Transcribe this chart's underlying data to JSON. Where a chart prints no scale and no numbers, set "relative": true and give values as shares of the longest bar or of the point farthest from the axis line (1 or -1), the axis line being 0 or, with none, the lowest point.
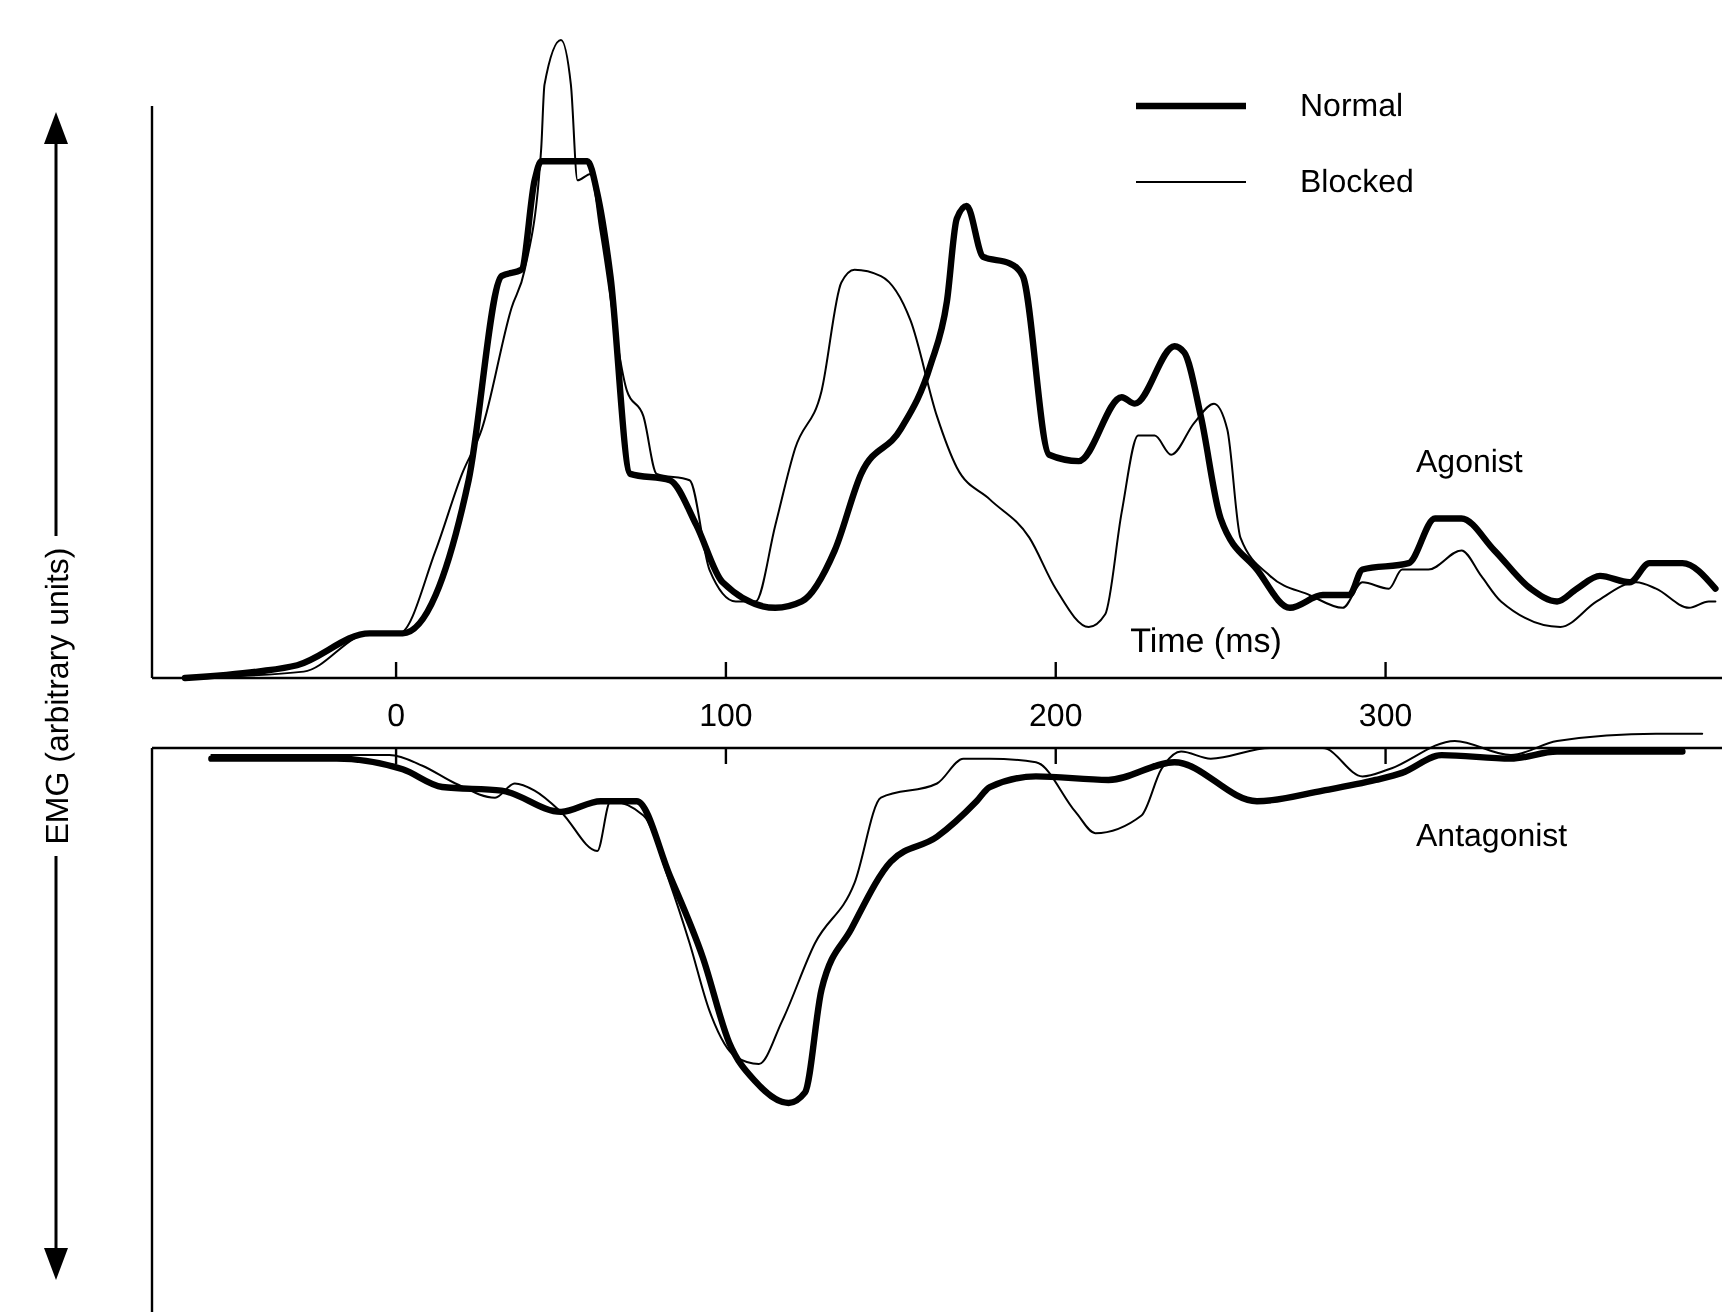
{
  "chart_data": [
    {
      "type": "line",
      "relative": true,
      "xlabel": "Time (ms)",
      "ylabel": "EMG (arbitrary units)",
      "xlim": [
        -74,
        402
      ],
      "xticks": [
        0,
        100,
        200,
        300
      ],
      "tick_labels": "x",
      "legend": "top right",
      "annotations": [
        "Agonist"
      ],
      "series": [
        {
          "name": "Normal",
          "color": "#000000",
          "x": [
            -64,
            -42,
            -30,
            -8,
            2,
            22,
            32,
            38,
            42,
            44,
            58,
            61,
            65,
            71,
            83,
            91,
            99,
            115,
            123,
            133,
            141,
            153,
            162,
            167,
            170,
            173,
            178,
            186,
            190,
            198,
            207,
            220,
            224,
            236,
            239,
            244,
            250,
            261,
            271,
            281,
            289,
            293,
            307,
            315,
            323,
            333,
            344,
            352,
            358,
            365,
            374,
            380,
            390,
            400
          ],
          "values": [
            0,
            0.01,
            0.02,
            0.07,
            0.07,
            0.31,
            0.63,
            0.64,
            0.78,
            0.81,
            0.81,
            0.76,
            0.63,
            0.32,
            0.31,
            0.24,
            0.15,
            0.11,
            0.12,
            0.2,
            0.32,
            0.39,
            0.49,
            0.59,
            0.72,
            0.74,
            0.66,
            0.65,
            0.63,
            0.35,
            0.34,
            0.44,
            0.43,
            0.52,
            0.51,
            0.41,
            0.25,
            0.17,
            0.11,
            0.13,
            0.13,
            0.17,
            0.18,
            0.25,
            0.25,
            0.2,
            0.14,
            0.12,
            0.14,
            0.16,
            0.15,
            0.18,
            0.18,
            0.14
          ]
        },
        {
          "name": "Blocked",
          "color": "#000000",
          "x": [
            -64,
            -28,
            -8,
            1,
            12,
            20,
            26,
            35,
            39,
            44,
            45,
            50,
            53,
            55,
            59,
            62,
            70,
            75,
            79,
            89,
            95,
            103,
            109,
            115,
            121,
            129,
            135,
            139,
            147,
            156,
            164,
            170,
            180,
            192,
            200,
            210,
            215,
            220,
            225,
            230,
            235,
            242,
            248,
            252,
            256,
            265,
            277,
            287,
            293,
            301,
            305,
            313,
            323,
            329,
            335,
            353,
            364,
            376,
            382,
            392,
            398,
            400
          ],
          "values": [
            0,
            0.01,
            0.07,
            0.07,
            0.2,
            0.32,
            0.39,
            0.58,
            0.64,
            0.83,
            0.93,
            1,
            0.93,
            0.78,
            0.79,
            0.7,
            0.45,
            0.41,
            0.32,
            0.31,
            0.17,
            0.12,
            0.12,
            0.24,
            0.36,
            0.45,
            0.62,
            0.64,
            0.63,
            0.56,
            0.41,
            0.33,
            0.28,
            0.22,
            0.14,
            0.08,
            0.1,
            0.26,
            0.38,
            0.38,
            0.35,
            0.4,
            0.43,
            0.39,
            0.22,
            0.16,
            0.13,
            0.11,
            0.15,
            0.14,
            0.17,
            0.17,
            0.2,
            0.16,
            0.12,
            0.08,
            0.12,
            0.15,
            0.14,
            0.11,
            0.12,
            0.12
          ]
        }
      ]
    },
    {
      "type": "line",
      "relative": true,
      "xlim": [
        -74,
        402
      ],
      "xticks": [
        {
          "value": 0,
          "label": null
        },
        {
          "value": 100,
          "label": null
        },
        {
          "value": 200,
          "label": null
        },
        {
          "value": 300,
          "label": null
        }
      ],
      "tick_labels": false,
      "annotations": [
        "Antagonist"
      ],
      "series": [
        {
          "color": "#000000",
          "x": [
            -56,
            -18,
            2,
            14,
            32,
            50,
            62,
            73,
            83,
            93,
            101,
            109,
            119,
            124,
            129,
            138,
            150,
            164,
            176,
            180,
            194,
            216,
            236,
            261,
            281,
            297,
            305,
            317,
            338,
            352,
            390
          ],
          "values": [
            -0.03,
            -0.03,
            -0.06,
            -0.11,
            -0.12,
            -0.18,
            -0.15,
            -0.15,
            -0.36,
            -0.59,
            -0.83,
            -0.94,
            -1,
            -0.97,
            -0.68,
            -0.51,
            -0.32,
            -0.25,
            -0.15,
            -0.11,
            -0.08,
            -0.09,
            -0.04,
            -0.15,
            -0.12,
            -0.09,
            -0.07,
            -0.02,
            -0.03,
            -0.01,
            -0.01
          ]
        },
        {
          "color": "#000000",
          "x": [
            -56,
            -2,
            8,
            18,
            30,
            36,
            42,
            50,
            61,
            65,
            75,
            83,
            89,
            95,
            103,
            110,
            117,
            127,
            139,
            147,
            164,
            172,
            180,
            194,
            206,
            212,
            226,
            232,
            238,
            247,
            265,
            281,
            293,
            301,
            321,
            338,
            352,
            382,
            396
          ],
          "values": [
            -0.02,
            -0.02,
            -0.05,
            -0.1,
            -0.14,
            -0.1,
            -0.12,
            -0.18,
            -0.29,
            -0.15,
            -0.19,
            -0.38,
            -0.55,
            -0.74,
            -0.87,
            -0.89,
            -0.77,
            -0.55,
            -0.38,
            -0.14,
            -0.1,
            -0.03,
            -0.03,
            -0.04,
            -0.18,
            -0.24,
            -0.19,
            -0.06,
            -0.01,
            -0.03,
            0,
            0,
            -0.08,
            -0.06,
            0.02,
            -0.02,
            0.02,
            0.04,
            0.04
          ]
        }
      ]
    }
  ]
}
